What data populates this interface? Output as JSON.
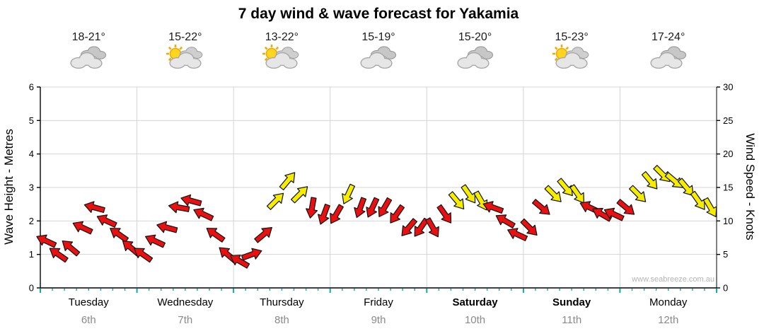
{
  "watermark": "www.seabreeze.com.au",
  "colors": {
    "arrow_red": "#e81010",
    "arrow_yellow": "#f5ec00",
    "arrow_outline": "#101010",
    "grid": "#d4d4d4",
    "axis": "#000000",
    "cyan_tick": "#00b2b2",
    "date_gray": "#8a8a8a"
  },
  "chart_data": {
    "type": "scatter",
    "marker": "wind-arrow",
    "title": "7 day wind & wave forecast for Yakamia",
    "axes": {
      "left_title": "Wave Height - Metres",
      "right_title": "Wind Speed - Knots",
      "left_ticks": [
        0,
        1,
        2,
        3,
        4,
        5,
        6
      ],
      "right_ticks": [
        0,
        5,
        10,
        15,
        20,
        25,
        30
      ],
      "ylim_left": [
        0,
        6
      ],
      "ylim_right": [
        0,
        30
      ],
      "grid": true
    },
    "days": [
      {
        "name": "Tuesday",
        "date": "6th",
        "temp": "18-21°",
        "icon": "cloudy",
        "bold": false
      },
      {
        "name": "Wednesday",
        "date": "7th",
        "temp": "15-22°",
        "icon": "partly-sunny",
        "bold": false
      },
      {
        "name": "Thursday",
        "date": "8th",
        "temp": "13-22°",
        "icon": "partly-sunny",
        "bold": false
      },
      {
        "name": "Friday",
        "date": "9th",
        "temp": "15-19°",
        "icon": "cloudy",
        "bold": false
      },
      {
        "name": "Saturday",
        "date": "10th",
        "temp": "15-20°",
        "icon": "cloudy",
        "bold": true
      },
      {
        "name": "Sunday",
        "date": "11th",
        "temp": "15-23°",
        "icon": "partly-sunny",
        "bold": true
      },
      {
        "name": "Monday",
        "date": "12th",
        "temp": "17-24°",
        "icon": "cloudy",
        "bold": false
      }
    ],
    "points_per_day": 8,
    "wind_points": [
      {
        "kn": 7,
        "dir": 205,
        "c": "r"
      },
      {
        "kn": 5,
        "dir": 215,
        "c": "r"
      },
      {
        "kn": 6,
        "dir": 220,
        "c": "r"
      },
      {
        "kn": 9,
        "dir": 205,
        "c": "r"
      },
      {
        "kn": 12,
        "dir": 195,
        "c": "r"
      },
      {
        "kn": 10,
        "dir": 205,
        "c": "r"
      },
      {
        "kn": 8,
        "dir": 215,
        "c": "r"
      },
      {
        "kn": 6,
        "dir": 220,
        "c": "r"
      },
      {
        "kn": 5,
        "dir": 215,
        "c": "r"
      },
      {
        "kn": 7,
        "dir": 205,
        "c": "r"
      },
      {
        "kn": 9,
        "dir": 195,
        "c": "r"
      },
      {
        "kn": 12,
        "dir": 190,
        "c": "r"
      },
      {
        "kn": 13,
        "dir": 195,
        "c": "r"
      },
      {
        "kn": 11,
        "dir": 205,
        "c": "r"
      },
      {
        "kn": 8,
        "dir": 215,
        "c": "r"
      },
      {
        "kn": 5,
        "dir": 220,
        "c": "r"
      },
      {
        "kn": 4,
        "dir": 210,
        "c": "r"
      },
      {
        "kn": 5,
        "dir": 340,
        "c": "r"
      },
      {
        "kn": 8,
        "dir": 320,
        "c": "r"
      },
      {
        "kn": 13,
        "dir": 315,
        "c": "y"
      },
      {
        "kn": 16,
        "dir": 310,
        "c": "y"
      },
      {
        "kn": 14,
        "dir": 315,
        "c": "y"
      },
      {
        "kn": 12,
        "dir": 100,
        "c": "r"
      },
      {
        "kn": 11,
        "dir": 110,
        "c": "r"
      },
      {
        "kn": 11,
        "dir": 120,
        "c": "r"
      },
      {
        "kn": 14,
        "dir": 115,
        "c": "y"
      },
      {
        "kn": 12,
        "dir": 110,
        "c": "r"
      },
      {
        "kn": 12,
        "dir": 115,
        "c": "r"
      },
      {
        "kn": 12,
        "dir": 120,
        "c": "r"
      },
      {
        "kn": 11,
        "dir": 125,
        "c": "r"
      },
      {
        "kn": 9,
        "dir": 130,
        "c": "r"
      },
      {
        "kn": 9,
        "dir": 125,
        "c": "r"
      },
      {
        "kn": 9,
        "dir": 60,
        "c": "r"
      },
      {
        "kn": 11,
        "dir": 55,
        "c": "r"
      },
      {
        "kn": 13,
        "dir": 50,
        "c": "y"
      },
      {
        "kn": 14,
        "dir": 55,
        "c": "y"
      },
      {
        "kn": 13,
        "dir": 60,
        "c": "y"
      },
      {
        "kn": 12,
        "dir": 200,
        "c": "r"
      },
      {
        "kn": 10,
        "dir": 210,
        "c": "r"
      },
      {
        "kn": 8,
        "dir": 205,
        "c": "r"
      },
      {
        "kn": 9,
        "dir": 45,
        "c": "r"
      },
      {
        "kn": 12,
        "dir": 40,
        "c": "r"
      },
      {
        "kn": 14,
        "dir": 45,
        "c": "y"
      },
      {
        "kn": 15,
        "dir": 50,
        "c": "y"
      },
      {
        "kn": 14,
        "dir": 55,
        "c": "y"
      },
      {
        "kn": 12,
        "dir": 205,
        "c": "r"
      },
      {
        "kn": 11,
        "dir": 210,
        "c": "r"
      },
      {
        "kn": 11,
        "dir": 205,
        "c": "r"
      },
      {
        "kn": 12,
        "dir": 40,
        "c": "r"
      },
      {
        "kn": 14,
        "dir": 45,
        "c": "y"
      },
      {
        "kn": 16,
        "dir": 50,
        "c": "y"
      },
      {
        "kn": 17,
        "dir": 45,
        "c": "y"
      },
      {
        "kn": 16,
        "dir": 40,
        "c": "y"
      },
      {
        "kn": 15,
        "dir": 50,
        "c": "y"
      },
      {
        "kn": 13,
        "dir": 55,
        "c": "y"
      },
      {
        "kn": 12,
        "dir": 60,
        "c": "y"
      }
    ]
  }
}
